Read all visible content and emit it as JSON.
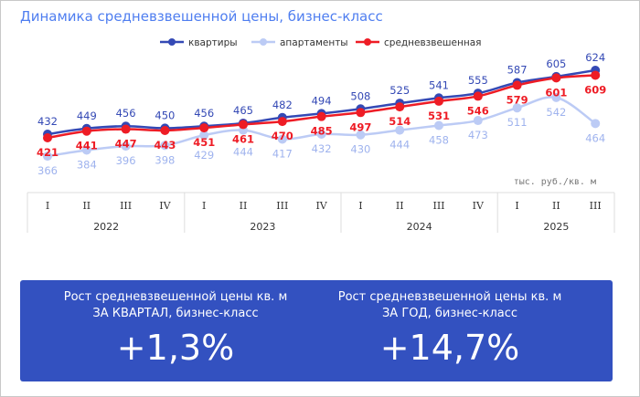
{
  "title": "Динамика средневзвешенной цены, бизнес-класс",
  "chart_data": {
    "type": "line",
    "title": "Динамика средневзвешенной цены, бизнес-класс",
    "unit_label": "тыс. руб./кв. м",
    "categories": [
      "I",
      "II",
      "III",
      "IV",
      "I",
      "II",
      "III",
      "IV",
      "I",
      "II",
      "III",
      "IV",
      "I",
      "II",
      "III"
    ],
    "years": [
      {
        "label": "2022",
        "quarters": 4
      },
      {
        "label": "2023",
        "quarters": 4
      },
      {
        "label": "2024",
        "quarters": 4
      },
      {
        "label": "2025",
        "quarters": 3
      }
    ],
    "legend_position": "top-center",
    "grid": false,
    "series": [
      {
        "name": "квартиры",
        "color": "#3449b5",
        "label_color": "#3449b5",
        "values": [
          432,
          449,
          456,
          450,
          456,
          465,
          482,
          494,
          508,
          525,
          541,
          555,
          587,
          605,
          624
        ]
      },
      {
        "name": "апартаменты",
        "color": "#bccbf5",
        "label_color": "#9fb3ee",
        "values": [
          366,
          384,
          396,
          398,
          429,
          444,
          417,
          432,
          430,
          444,
          458,
          473,
          511,
          542,
          464
        ]
      },
      {
        "name": "средневзвешенная",
        "color": "#ee1c25",
        "label_color": "#ee1c25",
        "values": [
          421,
          441,
          447,
          443,
          451,
          461,
          470,
          485,
          497,
          514,
          531,
          546,
          579,
          601,
          609
        ]
      }
    ]
  },
  "kpis": [
    {
      "caption_line1": "Рост средневзвешенной цены кв. м",
      "caption_line2": "ЗА КВАРТАЛ, бизнес-класс",
      "value": "+1,3%"
    },
    {
      "caption_line1": "Рост средневзвешенной цены кв. м",
      "caption_line2": "ЗА ГОД, бизнес-класс",
      "value": "+14,7%"
    }
  ]
}
